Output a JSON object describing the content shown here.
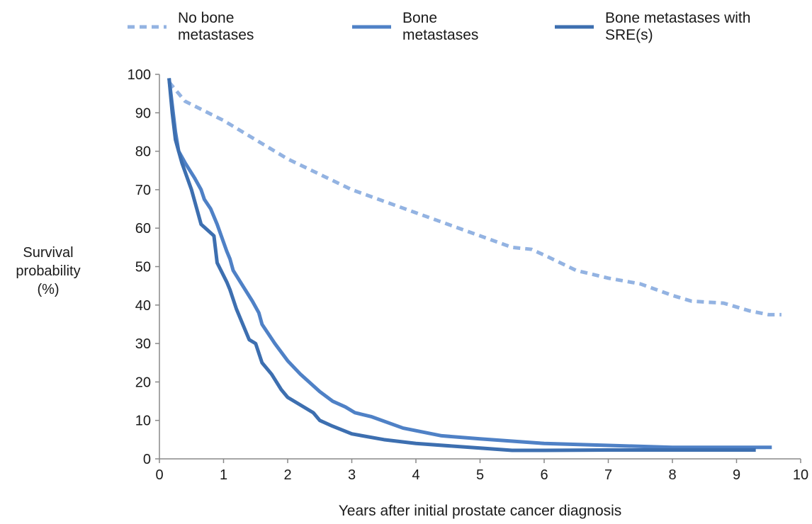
{
  "chart_data": {
    "type": "line",
    "y_label": "Survival probability (%)",
    "x_label": "Years after initial prostate cancer diagnosis",
    "xlim": [
      0,
      10
    ],
    "ylim": [
      0,
      100
    ],
    "xticks": [
      0,
      1,
      2,
      3,
      4,
      5,
      6,
      7,
      8,
      9,
      10
    ],
    "yticks": [
      0,
      10,
      20,
      30,
      40,
      50,
      60,
      70,
      80,
      90,
      100
    ],
    "series": [
      {
        "name": "No bone metastases",
        "color": "#93b3e2",
        "dashed": true,
        "x": [
          0.15,
          0.4,
          1,
          1.5,
          2,
          2.5,
          3,
          3.5,
          4,
          4.5,
          5,
          5.5,
          5.8,
          6,
          6.5,
          7,
          7.5,
          8,
          8.3,
          8.8,
          9.2,
          9.5,
          9.7
        ],
        "values": [
          98,
          93,
          88,
          83,
          78,
          74,
          70,
          67,
          64,
          61,
          58,
          55,
          54.5,
          53,
          49,
          47,
          45.5,
          42.5,
          41,
          40.5,
          38.5,
          37.5,
          37.5
        ]
      },
      {
        "name": "Bone metastases",
        "color": "#4f81c6",
        "dashed": false,
        "x": [
          0.15,
          0.2,
          0.25,
          0.3,
          0.4,
          0.55,
          0.65,
          0.7,
          0.8,
          0.9,
          1.05,
          1.1,
          1.15,
          1.3,
          1.45,
          1.55,
          1.6,
          1.8,
          2,
          2.2,
          2.5,
          2.7,
          2.9,
          3.05,
          3.3,
          3.8,
          4.4,
          5,
          6,
          7,
          8,
          9,
          9.55
        ],
        "values": [
          99,
          92,
          85,
          80,
          77,
          73,
          70,
          67.5,
          65,
          61,
          54,
          52,
          49,
          45,
          41,
          38,
          35,
          30,
          25.5,
          22,
          17.5,
          15,
          13.5,
          12,
          11,
          8,
          6,
          5.2,
          4,
          3.5,
          3,
          3,
          3
        ]
      },
      {
        "name": "Bone metastases with SRE(s)",
        "color": "#3d6fb0",
        "dashed": false,
        "x": [
          0.15,
          0.2,
          0.25,
          0.35,
          0.5,
          0.65,
          0.75,
          0.85,
          0.9,
          1.05,
          1.1,
          1.2,
          1.4,
          1.5,
          1.6,
          1.75,
          1.9,
          2,
          2.2,
          2.4,
          2.5,
          2.7,
          3,
          3.5,
          4,
          5,
          5.5,
          6,
          7,
          8,
          9.3
        ],
        "values": [
          99,
          90,
          83,
          77,
          70,
          61,
          59.5,
          58,
          51,
          46,
          44,
          39,
          31,
          30,
          25,
          22,
          18,
          16,
          14,
          12,
          10,
          8.5,
          6.5,
          5,
          4,
          2.8,
          2.2,
          2.2,
          2.3,
          2.3,
          2.3
        ]
      }
    ]
  }
}
